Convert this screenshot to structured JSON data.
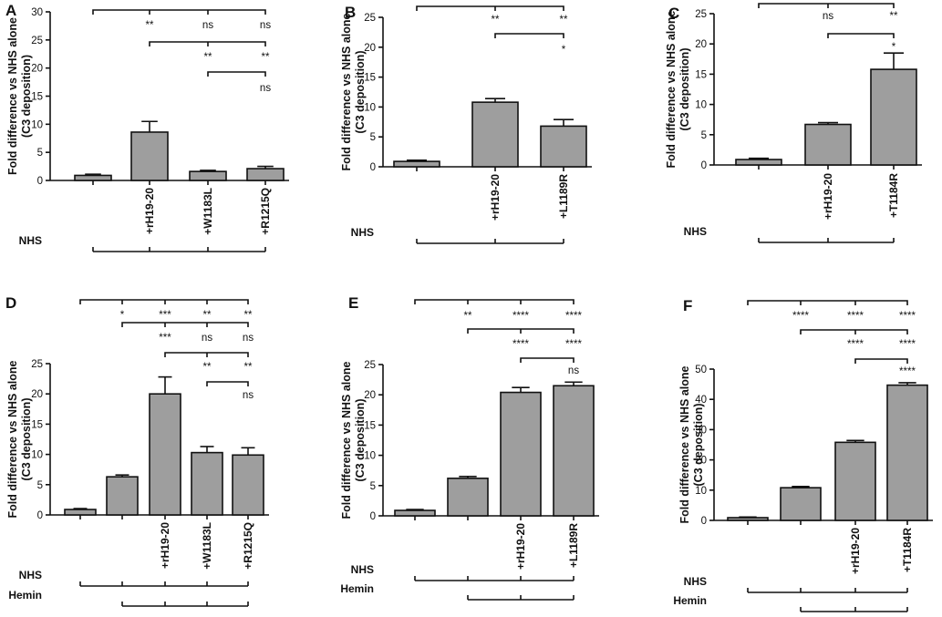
{
  "chart_data": [
    {
      "panel": "A",
      "type": "bar",
      "ylabel_line1": "Fold difference vs NHS alone",
      "ylabel_line2": "(C3 deposition)",
      "ylim": [
        0,
        30
      ],
      "yticks": [
        0,
        5,
        10,
        15,
        20,
        25,
        30
      ],
      "categories": [
        "",
        "+rH19-20",
        "+W1183L",
        "+R1215Q"
      ],
      "values": [
        0.9,
        8.6,
        1.6,
        2.1
      ],
      "errors": [
        0.2,
        1.9,
        0.2,
        0.4
      ],
      "comparisons": [
        {
          "from": 0,
          "to": 3,
          "labels": [
            {
              "at": 1,
              "text": "**"
            },
            {
              "at": 2,
              "text": "ns"
            },
            {
              "at": 3,
              "text": "ns"
            }
          ]
        },
        {
          "from": 1,
          "to": 3,
          "labels": [
            {
              "at": 2,
              "text": "**"
            },
            {
              "at": 3,
              "text": "**"
            }
          ]
        },
        {
          "from": 2,
          "to": 3,
          "labels": [
            {
              "at": 3,
              "text": "ns"
            }
          ]
        }
      ],
      "rows": [
        {
          "label": "NHS",
          "from": 0,
          "to": 3
        }
      ]
    },
    {
      "panel": "B",
      "type": "bar",
      "ylabel_line1": "Fold difference vs NHS alone",
      "ylabel_line2": "(C3 deposition)",
      "ylim": [
        0,
        25
      ],
      "yticks": [
        0,
        5,
        10,
        15,
        20,
        25
      ],
      "categories": [
        "",
        "+rH19-20",
        "+L1189R"
      ],
      "values": [
        0.9,
        10.8,
        6.8
      ],
      "errors": [
        0.2,
        0.6,
        1.1
      ],
      "comparisons": [
        {
          "from": 0,
          "to": 2,
          "labels": [
            {
              "at": 1,
              "text": "**"
            },
            {
              "at": 2,
              "text": "**"
            }
          ]
        },
        {
          "from": 1,
          "to": 2,
          "labels": [
            {
              "at": 2,
              "text": "*"
            }
          ]
        }
      ],
      "rows": [
        {
          "label": "NHS",
          "from": 0,
          "to": 2
        }
      ]
    },
    {
      "panel": "C",
      "type": "bar",
      "ylabel_line1": "Fold difference vs NHS alone",
      "ylabel_line2": "(C3 deposition)",
      "ylim": [
        0,
        25
      ],
      "yticks": [
        0,
        5,
        10,
        15,
        20,
        25
      ],
      "categories": [
        "",
        "+rH19-20",
        "+T1184R"
      ],
      "values": [
        0.9,
        6.7,
        15.8
      ],
      "errors": [
        0.2,
        0.3,
        2.7
      ],
      "comparisons": [
        {
          "from": 0,
          "to": 2,
          "labels": [
            {
              "at": 1,
              "text": "ns"
            },
            {
              "at": 2,
              "text": "**"
            }
          ]
        },
        {
          "from": 1,
          "to": 2,
          "labels": [
            {
              "at": 2,
              "text": "*"
            }
          ]
        }
      ],
      "rows": [
        {
          "label": "NHS",
          "from": 0,
          "to": 2
        }
      ]
    },
    {
      "panel": "D",
      "type": "bar",
      "ylabel_line1": "Fold difference vs NHS alone",
      "ylabel_line2": "(C3 deposition)",
      "ylim": [
        0,
        25
      ],
      "yticks": [
        0,
        5,
        10,
        15,
        20,
        25
      ],
      "categories": [
        "",
        "",
        "+rH19-20",
        "+W1183L",
        "+R1215Q"
      ],
      "values": [
        0.9,
        6.3,
        20.0,
        10.3,
        9.9
      ],
      "errors": [
        0.15,
        0.3,
        2.8,
        1.0,
        1.2
      ],
      "comparisons": [
        {
          "from": 0,
          "to": 4,
          "labels": [
            {
              "at": 1,
              "text": "*"
            },
            {
              "at": 2,
              "text": "***"
            },
            {
              "at": 3,
              "text": "**"
            },
            {
              "at": 4,
              "text": "**"
            }
          ]
        },
        {
          "from": 1,
          "to": 4,
          "labels": [
            {
              "at": 2,
              "text": "***"
            },
            {
              "at": 3,
              "text": "ns"
            },
            {
              "at": 4,
              "text": "ns"
            }
          ]
        },
        {
          "from": 2,
          "to": 4,
          "labels": [
            {
              "at": 3,
              "text": "**"
            },
            {
              "at": 4,
              "text": "**"
            }
          ]
        },
        {
          "from": 3,
          "to": 4,
          "labels": [
            {
              "at": 4,
              "text": "ns"
            }
          ]
        }
      ],
      "rows": [
        {
          "label": "NHS",
          "from": 0,
          "to": 4
        },
        {
          "label": "Hemin",
          "from": 1,
          "to": 4
        }
      ]
    },
    {
      "panel": "E",
      "type": "bar",
      "ylabel_line1": "Fold difference vs NHS alone",
      "ylabel_line2": "(C3 deposition)",
      "ylim": [
        0,
        25
      ],
      "yticks": [
        0,
        5,
        10,
        15,
        20,
        25
      ],
      "categories": [
        "",
        "",
        "+rH19-20",
        "+L1189R"
      ],
      "values": [
        0.9,
        6.2,
        20.4,
        21.5
      ],
      "errors": [
        0.15,
        0.3,
        0.8,
        0.6
      ],
      "comparisons": [
        {
          "from": 0,
          "to": 3,
          "labels": [
            {
              "at": 1,
              "text": "**"
            },
            {
              "at": 2,
              "text": "****"
            },
            {
              "at": 3,
              "text": "****"
            }
          ]
        },
        {
          "from": 1,
          "to": 3,
          "labels": [
            {
              "at": 2,
              "text": "****"
            },
            {
              "at": 3,
              "text": "****"
            }
          ]
        },
        {
          "from": 2,
          "to": 3,
          "labels": [
            {
              "at": 3,
              "text": "ns"
            }
          ]
        }
      ],
      "rows": [
        {
          "label": "NHS",
          "from": 0,
          "to": 3
        },
        {
          "label": "Hemin",
          "from": 1,
          "to": 3
        }
      ]
    },
    {
      "panel": "F",
      "type": "bar",
      "ylabel_line1": "Fold difference vs NHS alone",
      "ylabel_line2": "(C3 deposition)",
      "ylim": [
        0,
        50
      ],
      "yticks": [
        0,
        10,
        20,
        30,
        40,
        50
      ],
      "categories": [
        "",
        "",
        "+rH19-20",
        "+T1184R"
      ],
      "values": [
        0.9,
        10.8,
        25.8,
        44.7
      ],
      "errors": [
        0.2,
        0.4,
        0.6,
        0.8
      ],
      "comparisons": [
        {
          "from": 0,
          "to": 3,
          "labels": [
            {
              "at": 1,
              "text": "****"
            },
            {
              "at": 2,
              "text": "****"
            },
            {
              "at": 3,
              "text": "****"
            }
          ]
        },
        {
          "from": 1,
          "to": 3,
          "labels": [
            {
              "at": 2,
              "text": "****"
            },
            {
              "at": 3,
              "text": "****"
            }
          ]
        },
        {
          "from": 2,
          "to": 3,
          "labels": [
            {
              "at": 3,
              "text": "****"
            }
          ]
        }
      ],
      "rows": [
        {
          "label": "NHS",
          "from": 0,
          "to": 3
        },
        {
          "label": "Hemin",
          "from": 1,
          "to": 3
        }
      ]
    }
  ]
}
